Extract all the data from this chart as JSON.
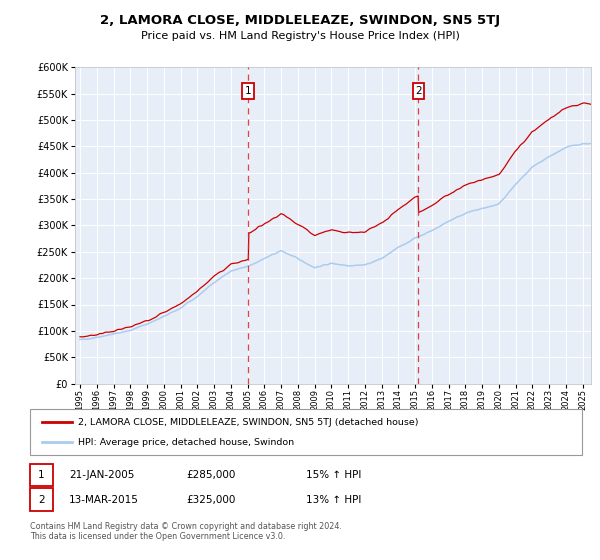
{
  "title": "2, LAMORA CLOSE, MIDDLELEAZE, SWINDON, SN5 5TJ",
  "subtitle": "Price paid vs. HM Land Registry's House Price Index (HPI)",
  "legend_line1": "2, LAMORA CLOSE, MIDDLELEAZE, SWINDON, SN5 5TJ (detached house)",
  "legend_line2": "HPI: Average price, detached house, Swindon",
  "transaction1_date": "21-JAN-2005",
  "transaction1_price": "£285,000",
  "transaction1_hpi": "15% ↑ HPI",
  "transaction2_date": "13-MAR-2015",
  "transaction2_price": "£325,000",
  "transaction2_hpi": "13% ↑ HPI",
  "footer": "Contains HM Land Registry data © Crown copyright and database right 2024.\nThis data is licensed under the Open Government Licence v3.0.",
  "hpi_color": "#aaccee",
  "price_color": "#cc0000",
  "marker1_x": 2005.05,
  "marker2_x": 2015.2,
  "ylim": [
    0,
    600000
  ],
  "xlim": [
    1994.7,
    2025.5
  ],
  "plot_bg": "#e8eef8"
}
